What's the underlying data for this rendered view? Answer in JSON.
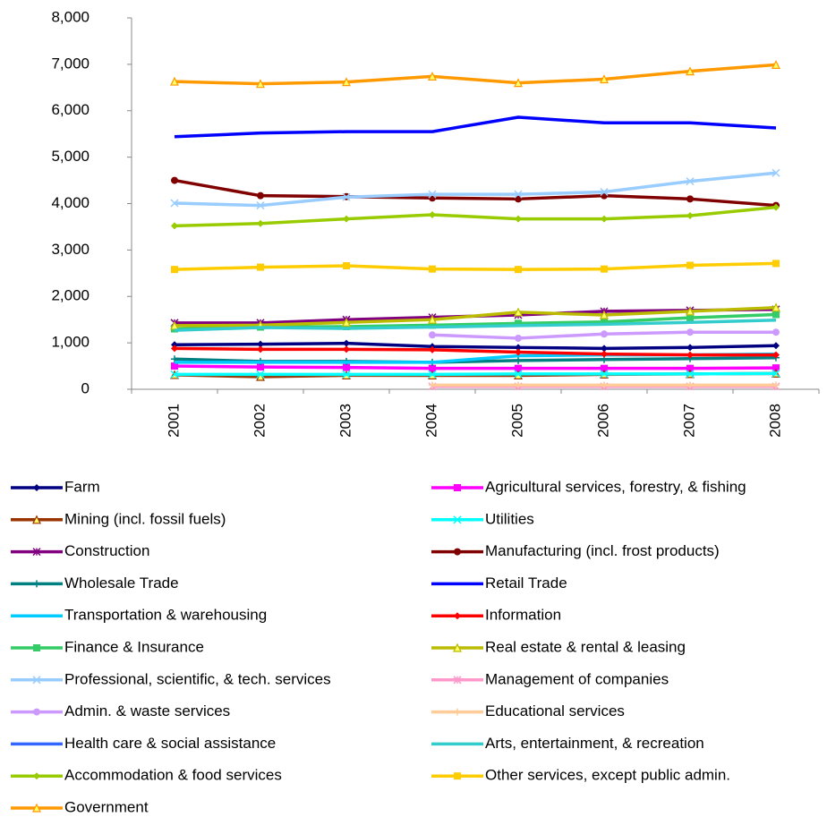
{
  "chart_data": {
    "type": "line",
    "categories": [
      "2001",
      "2002",
      "2003",
      "2004",
      "2005",
      "2006",
      "2007",
      "2008"
    ],
    "ylim": [
      0,
      8000
    ],
    "yticks": [
      0,
      {
        "value": 1000,
        "label": "1,000"
      },
      {
        "value": 2000,
        "label": "2,000"
      },
      {
        "value": 3000,
        "label": "3,000"
      },
      {
        "value": 4000,
        "label": "4,000"
      },
      {
        "value": 5000,
        "label": "5,000"
      },
      {
        "value": 6000,
        "label": "6,000"
      },
      {
        "value": 7000,
        "label": "7,000"
      },
      {
        "value": 8000,
        "label": "8,000"
      }
    ],
    "grid": false,
    "legend": "bottom",
    "series": [
      {
        "name": "Farm",
        "color": "#000080",
        "marker": "diamond",
        "values": [
          960,
          970,
          990,
          920,
          900,
          880,
          900,
          940
        ]
      },
      {
        "name": "Agricultural services, forestry, & fishing",
        "color": "#FF00FF",
        "marker": "square",
        "values": [
          500,
          480,
          470,
          450,
          450,
          450,
          450,
          460
        ]
      },
      {
        "name": "Mining (incl. fossil fuels)",
        "color": "#993300",
        "marker": "triangle",
        "values": [
          310,
          270,
          300,
          300,
          300,
          320,
          330,
          340
        ]
      },
      {
        "name": "Utilities",
        "color": "#00FFFF",
        "marker": "x",
        "values": [
          320,
          320,
          320,
          320,
          330,
          330,
          330,
          340
        ]
      },
      {
        "name": "Construction",
        "color": "#800080",
        "marker": "star",
        "values": [
          1430,
          1430,
          1500,
          1550,
          1600,
          1680,
          1700,
          1720
        ]
      },
      {
        "name": "Manufacturing (incl. frost products)",
        "color": "#800000",
        "marker": "circle",
        "values": [
          4500,
          4170,
          4150,
          4120,
          4100,
          4170,
          4100,
          3960
        ]
      },
      {
        "name": "Wholesale Trade",
        "color": "#008080",
        "marker": "plus",
        "values": [
          650,
          600,
          600,
          580,
          620,
          640,
          660,
          680
        ]
      },
      {
        "name": "Retail Trade",
        "color": "#0000FF",
        "marker": "none",
        "values": [
          5440,
          5520,
          5550,
          5550,
          5860,
          5740,
          5740,
          5630
        ]
      },
      {
        "name": "Transportation & warehousing",
        "color": "#00CCFF",
        "marker": "none",
        "values": [
          580,
          580,
          580,
          580,
          720,
          740,
          740,
          760
        ]
      },
      {
        "name": "Information",
        "color": "#FF0000",
        "marker": "diamond",
        "values": [
          880,
          860,
          860,
          850,
          800,
          760,
          740,
          740
        ]
      },
      {
        "name": "Finance & Insurance",
        "color": "#33CC66",
        "marker": "square",
        "values": [
          1300,
          1340,
          1350,
          1380,
          1420,
          1450,
          1540,
          1610
        ]
      },
      {
        "name": "Real estate & rental & leasing",
        "color": "#BBBB00",
        "marker": "triangle",
        "values": [
          1370,
          1380,
          1440,
          1500,
          1660,
          1600,
          1680,
          1760
        ]
      },
      {
        "name": "Professional, scientific, & tech. services",
        "color": "#99CCFF",
        "marker": "x",
        "values": [
          4010,
          3960,
          4140,
          4200,
          4200,
          4250,
          4480,
          4660
        ]
      },
      {
        "name": "Management of companies",
        "color": "#FF99CC",
        "marker": "star",
        "values": [
          null,
          null,
          null,
          60,
          60,
          60,
          60,
          60
        ]
      },
      {
        "name": "Admin. & waste services",
        "color": "#CC99FF",
        "marker": "circle",
        "values": [
          null,
          null,
          null,
          1170,
          1100,
          1190,
          1230,
          1230
        ]
      },
      {
        "name": "Educational services",
        "color": "#FFCC99",
        "marker": "plus",
        "values": [
          null,
          null,
          null,
          90,
          90,
          90,
          90,
          90
        ]
      },
      {
        "name": "Health care & social assistance",
        "color": "#3366FF",
        "marker": "none",
        "values": [
          null,
          null,
          null,
          null,
          null,
          null,
          null,
          null
        ]
      },
      {
        "name": "Arts, entertainment, & recreation",
        "color": "#33CCCC",
        "marker": "none",
        "values": [
          1270,
          1330,
          1310,
          1340,
          1370,
          1400,
          1440,
          1490
        ]
      },
      {
        "name": "Accommodation & food services",
        "color": "#99CC00",
        "marker": "diamond",
        "values": [
          3520,
          3570,
          3670,
          3760,
          3670,
          3670,
          3740,
          3920
        ]
      },
      {
        "name": "Other services, except public admin.",
        "color": "#FFCC00",
        "marker": "square",
        "values": [
          2580,
          2630,
          2660,
          2590,
          2580,
          2590,
          2670,
          2710
        ]
      },
      {
        "name": "Government",
        "color": "#FF9900",
        "marker": "triangle",
        "values": [
          6630,
          6580,
          6620,
          6740,
          6600,
          6680,
          6850,
          6990
        ]
      }
    ]
  }
}
